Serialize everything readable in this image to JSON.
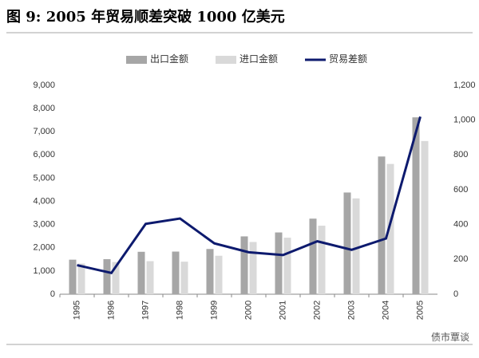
{
  "chart_data": {
    "type": "bar",
    "title": "图 9:   2005 年贸易顺差突破 1000 亿美元",
    "categories": [
      "1995",
      "1996",
      "1997",
      "1998",
      "1999",
      "2000",
      "2001",
      "2002",
      "2003",
      "2004",
      "2005"
    ],
    "series": [
      {
        "name": "出口金额",
        "type": "bar",
        "color": "#a6a6a6",
        "values": [
          1488,
          1510,
          1828,
          1837,
          1949,
          2492,
          2661,
          3256,
          4382,
          5933,
          7620
        ]
      },
      {
        "name": "进口金额",
        "type": "bar",
        "color": "#d9d9d9",
        "values": [
          1321,
          1388,
          1424,
          1402,
          1657,
          2251,
          2436,
          2952,
          4128,
          5612,
          6600
        ]
      },
      {
        "name": "贸易差额",
        "type": "line",
        "axis": "y2",
        "color": "#0d1a6e",
        "values": [
          167,
          122,
          404,
          435,
          292,
          241,
          225,
          304,
          255,
          320,
          1020
        ]
      }
    ],
    "ylim": [
      0,
      9000
    ],
    "yticks": [
      0,
      {
        "value": 1000,
        "label": "1,000"
      },
      {
        "value": 2000,
        "label": "2,000"
      },
      {
        "value": 3000,
        "label": "3,000"
      },
      {
        "value": 4000,
        "label": "4,000"
      },
      {
        "value": 5000,
        "label": "5,000"
      },
      {
        "value": 6000,
        "label": "6,000"
      },
      {
        "value": 7000,
        "label": "7,000"
      },
      {
        "value": 8000,
        "label": "8,000"
      },
      {
        "value": 9000,
        "label": "9,000"
      }
    ],
    "y2lim": [
      0,
      1200
    ],
    "y2ticks": [
      0,
      200,
      400,
      600,
      800,
      {
        "value": 1000,
        "label": "1,000"
      },
      {
        "value": 1200,
        "label": "1,200"
      }
    ],
    "grid": false,
    "legend": "top"
  },
  "watermark": "债市覃谈"
}
